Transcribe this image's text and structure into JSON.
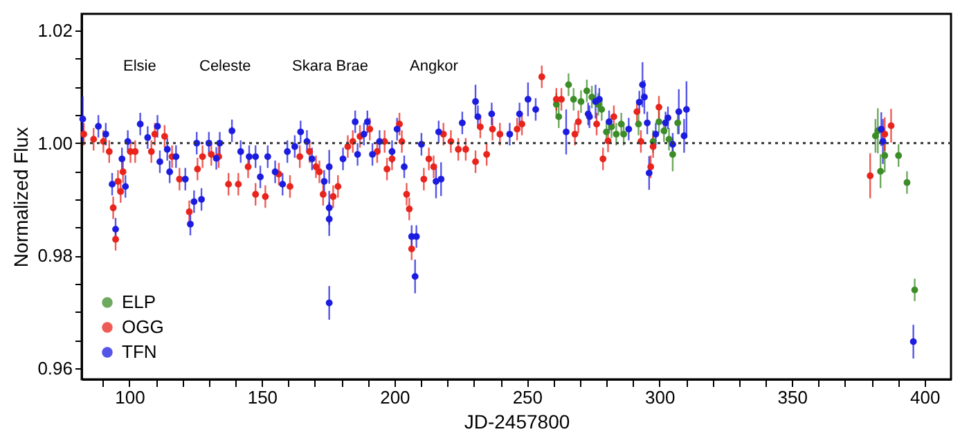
{
  "chart_data": {
    "type": "scatter",
    "xlabel": "JD-2457800",
    "ylabel": "Normalized Flux",
    "xlim": [
      82,
      410
    ],
    "ylim": [
      0.958,
      1.023
    ],
    "xticks": [
      {
        "value": 90,
        "label": null
      },
      100,
      {
        "value": 110,
        "label": null
      },
      {
        "value": 120,
        "label": null
      },
      {
        "value": 130,
        "label": null
      },
      {
        "value": 140,
        "label": null
      },
      150,
      {
        "value": 160,
        "label": null
      },
      {
        "value": 170,
        "label": null
      },
      {
        "value": 180,
        "label": null
      },
      {
        "value": 190,
        "label": null
      },
      200,
      {
        "value": 210,
        "label": null
      },
      {
        "value": 220,
        "label": null
      },
      {
        "value": 230,
        "label": null
      },
      {
        "value": 240,
        "label": null
      },
      250,
      {
        "value": 260,
        "label": null
      },
      {
        "value": 270,
        "label": null
      },
      {
        "value": 280,
        "label": null
      },
      {
        "value": 290,
        "label": null
      },
      300,
      {
        "value": 310,
        "label": null
      },
      {
        "value": 320,
        "label": null
      },
      {
        "value": 330,
        "label": null
      },
      {
        "value": 340,
        "label": null
      },
      350,
      {
        "value": 360,
        "label": null
      },
      {
        "value": 370,
        "label": null
      },
      {
        "value": 380,
        "label": null
      },
      {
        "value": 390,
        "label": null
      },
      400
    ],
    "yticks": [
      {
        "value": 0.96,
        "label": "0.96"
      },
      {
        "value": 0.965,
        "label": null
      },
      {
        "value": 0.97,
        "label": null
      },
      {
        "value": 0.975,
        "label": null
      },
      {
        "value": 0.98,
        "label": "0.98"
      },
      {
        "value": 0.985,
        "label": null
      },
      {
        "value": 0.99,
        "label": null
      },
      {
        "value": 0.995,
        "label": null
      },
      {
        "value": 1,
        "label": "1.00"
      },
      {
        "value": 1.005,
        "label": null
      },
      {
        "value": 1.01,
        "label": null
      },
      {
        "value": 1.015,
        "label": null
      },
      {
        "value": 1.02,
        "label": "1.02"
      }
    ],
    "grid": false,
    "legend": "bottom left",
    "marker": "circle",
    "ref_lines": [
      {
        "axis": "y",
        "value": 1,
        "line_style": "dotted",
        "color": "#333333"
      }
    ],
    "annotations": [
      "Elsie",
      "Celeste",
      "Skara Brae",
      "Angkor"
    ],
    "series": [
      {
        "name": "ELP",
        "color": "#3c8c28",
        "x": [
          261.1,
          262,
          265.7,
          267.6,
          270.4,
          272.6,
          274.5,
          276.9,
          278.2,
          280,
          281.9,
          283.7,
          285.6,
          286.5,
          292.1,
          297.6,
          299.8,
          301.7,
          303.6,
          305,
          306.9,
          381.5,
          382.4,
          383.4,
          385,
          390.2,
          393.4,
          396.3
        ],
        "values": [
          1.0069,
          1.0047,
          1.0104,
          1.0078,
          1.0074,
          1.0093,
          1.0082,
          1.0069,
          1.006,
          1.002,
          1.0029,
          1.0016,
          1.0034,
          1.0016,
          1.0034,
          1.0003,
          1.0038,
          1.0022,
          1.0007,
          0.998,
          1.0036,
          1.0013,
          1.0022,
          0.995,
          0.9978,
          0.9978,
          0.993,
          0.9739
        ],
        "errors": [
          0.002,
          0.002,
          0.002,
          0.002,
          0.002,
          0.002,
          0.002,
          0.002,
          0.002,
          0.002,
          0.002,
          0.002,
          0.002,
          0.002,
          0.002,
          0.002,
          0.002,
          0.002,
          0.002,
          0.003,
          0.002,
          0.003,
          0.004,
          0.003,
          0.003,
          0.002,
          0.002,
          0.002
        ]
      },
      {
        "name": "OGG",
        "color": "#e8241c",
        "x": [
          82.8,
          86.5,
          90.2,
          92.4,
          93.9,
          94.8,
          95.7,
          96.7,
          97.6,
          100.4,
          102.2,
          108.3,
          109.6,
          113.3,
          116.1,
          118.9,
          122.6,
          125.7,
          127.6,
          130.9,
          133.7,
          137.4,
          141.1,
          144.8,
          147.6,
          151.3,
          156.4,
          160.6,
          164.3,
          168,
          170.4,
          171.7,
          173.1,
          176.9,
          178.7,
          182.4,
          184.3,
          187,
          190.7,
          193.5,
          196.3,
          197.2,
          199.1,
          201.9,
          202.8,
          204.6,
          205.6,
          206.5,
          211.1,
          213,
          214.8,
          218.5,
          221.3,
          224.1,
          226.9,
          230.6,
          232.4,
          234.8,
          237,
          239.8,
          246.3,
          248.1,
          255.6,
          261.1,
          263,
          268.1,
          269.4,
          276.3,
          278.7,
          280.6,
          282.8,
          291.5,
          293,
          296.7,
          297.6,
          299.8,
          379.5,
          385,
          387.4
        ],
        "values": [
          1.0016,
          1.0007,
          1.0003,
          0.9985,
          0.9885,
          0.9829,
          0.9932,
          0.9914,
          0.9949,
          0.9985,
          0.9985,
          0.9985,
          1.0016,
          1.0012,
          0.9976,
          0.9936,
          0.9878,
          0.9954,
          0.9976,
          0.998,
          0.9976,
          0.9927,
          0.9927,
          0.9958,
          0.9909,
          0.9905,
          0.9945,
          0.9923,
          0.9976,
          0.9985,
          0.9958,
          0.9949,
          0.9909,
          0.9905,
          0.9923,
          0.9994,
          1.0003,
          1.0012,
          1.0025,
          0.9985,
          1.0003,
          0.9954,
          0.9972,
          1.0034,
          1.0003,
          0.9909,
          0.9883,
          0.9812,
          0.9936,
          0.9972,
          0.9958,
          1.0016,
          1.0003,
          0.9989,
          0.9989,
          0.9967,
          1.0029,
          0.998,
          1.0025,
          1.0016,
          1.0025,
          1.0034,
          1.0118,
          1.0078,
          1.0078,
          1.0016,
          1.0038,
          1.0034,
          0.9972,
          1.0004,
          1.0047,
          1.0056,
          1.0003,
          0.9958,
          0.9994,
          1.0064,
          0.9942,
          1.0016,
          1.0031
        ],
        "errors": [
          0.002,
          0.002,
          0.002,
          0.002,
          0.002,
          0.002,
          0.002,
          0.002,
          0.002,
          0.002,
          0.002,
          0.002,
          0.002,
          0.002,
          0.002,
          0.002,
          0.002,
          0.002,
          0.002,
          0.002,
          0.002,
          0.002,
          0.002,
          0.002,
          0.002,
          0.002,
          0.002,
          0.002,
          0.002,
          0.002,
          0.002,
          0.002,
          0.002,
          0.002,
          0.002,
          0.002,
          0.002,
          0.002,
          0.002,
          0.002,
          0.002,
          0.002,
          0.002,
          0.002,
          0.002,
          0.002,
          0.002,
          0.002,
          0.002,
          0.002,
          0.002,
          0.002,
          0.002,
          0.002,
          0.002,
          0.002,
          0.002,
          0.002,
          0.002,
          0.002,
          0.002,
          0.002,
          0.002,
          0.002,
          0.002,
          0.002,
          0.002,
          0.002,
          0.002,
          0.002,
          0.002,
          0.002,
          0.002,
          0.002,
          0.002,
          0.002,
          0.004,
          0.003,
          0.003
        ]
      },
      {
        "name": "TFN",
        "color": "#1c1ce0",
        "x": [
          82.4,
          88.3,
          91.1,
          93.5,
          94.8,
          97.2,
          98.5,
          99.4,
          104.1,
          106.9,
          110.6,
          111.5,
          114.3,
          115.2,
          117.6,
          121.1,
          123,
          124.4,
          125.4,
          127.2,
          130,
          132.8,
          134.1,
          138.7,
          142,
          145.2,
          147.6,
          149.4,
          152.2,
          155,
          157.8,
          159.6,
          162.4,
          164.6,
          167,
          168.9,
          173.5,
          175.4,
          175.4,
          175.4,
          175.4,
          180.6,
          185.2,
          186.1,
          188.5,
          189.8,
          191.7,
          194.4,
          199.1,
          201,
          203.7,
          206.5,
          207.8,
          208.3,
          210.2,
          215.7,
          216.7,
          217.6,
          225.6,
          230.6,
          231.5,
          236.7,
          243.5,
          247.2,
          250.4,
          253.3,
          264.8,
          273.1,
          273.6,
          275.9,
          277.3,
          281,
          288.4,
          292.4,
          293.6,
          294.3,
          295.4,
          296.1,
          298.6,
          302.3,
          303.2,
          305,
          307.3,
          309.3,
          310.2,
          383.7,
          384.3,
          395.8
        ],
        "values": [
          1.0043,
          1.003,
          1.0016,
          0.9927,
          0.9847,
          0.9972,
          0.9923,
          1.0003,
          1.0034,
          1.001,
          1.003,
          0.9967,
          0.9989,
          0.9949,
          0.9976,
          0.9936,
          0.9856,
          0.9896,
          1,
          0.99,
          1,
          0.9973,
          1,
          1.0022,
          0.9985,
          0.9976,
          0.9976,
          0.994,
          0.9976,
          0.9949,
          0.9927,
          0.9985,
          0.9994,
          1.002,
          1.0003,
          0.9972,
          0.9932,
          0.9958,
          0.9885,
          0.9865,
          0.9716,
          0.9972,
          1.0038,
          0.998,
          1.0016,
          1.0038,
          0.998,
          1.0003,
          0.9985,
          1.0025,
          0.9958,
          0.9834,
          0.9763,
          0.9834,
          0.9998,
          0.9932,
          1.002,
          0.9936,
          1.0036,
          1.0074,
          1.0047,
          1.0052,
          1.0016,
          1.0052,
          1.0078,
          1.006,
          1.002,
          1.0052,
          1.0047,
          1.0074,
          1.0078,
          1.0038,
          1.0025,
          1.0073,
          1.0104,
          1.0082,
          1.0036,
          0.9947,
          1.0016,
          1.0036,
          1.0045,
          0.9998,
          1.0056,
          1.0013,
          1.006,
          1.0025,
          1.0003,
          0.9647
        ],
        "errors": [
          0.004,
          0.002,
          0.002,
          0.002,
          0.002,
          0.002,
          0.002,
          0.002,
          0.002,
          0.002,
          0.002,
          0.002,
          0.002,
          0.002,
          0.002,
          0.002,
          0.002,
          0.002,
          0.002,
          0.002,
          0.002,
          0.002,
          0.002,
          0.002,
          0.002,
          0.002,
          0.002,
          0.002,
          0.002,
          0.002,
          0.002,
          0.002,
          0.002,
          0.002,
          0.002,
          0.002,
          0.002,
          0.003,
          0.003,
          0.003,
          0.003,
          0.002,
          0.002,
          0.002,
          0.002,
          0.002,
          0.002,
          0.002,
          0.002,
          0.002,
          0.002,
          0.002,
          0.003,
          0.002,
          0.002,
          0.003,
          0.002,
          0.003,
          0.002,
          0.003,
          0.002,
          0.002,
          0.002,
          0.002,
          0.003,
          0.002,
          0.004,
          0.002,
          0.002,
          0.003,
          0.002,
          0.002,
          0.002,
          0.002,
          0.004,
          0.003,
          0.002,
          0.003,
          0.002,
          0.002,
          0.002,
          0.002,
          0.004,
          0.003,
          0.005,
          0.003,
          0.004,
          0.003
        ]
      }
    ]
  }
}
